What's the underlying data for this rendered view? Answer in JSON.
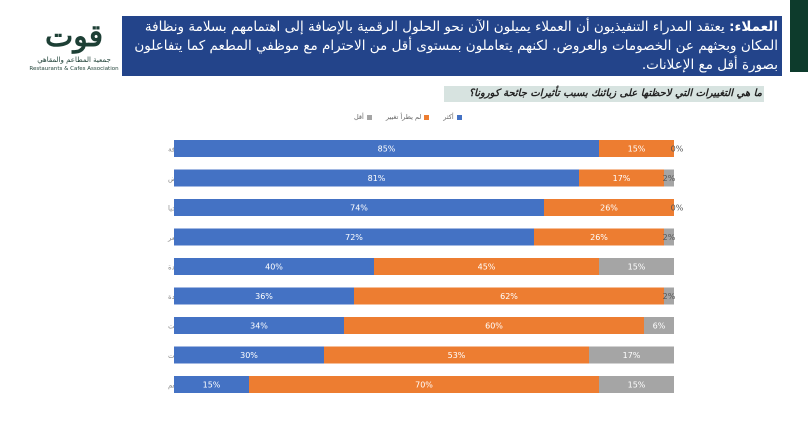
{
  "header": {
    "label": "العملاء:",
    "text": " يعتقد المدراء التنفيذيون أن العملاء يميلون الآن نحو الحلول الرقمية بالإضافة إلى اهتمامهم بسلامة ونظافة المكان وبحثهم عن الخصومات والعروض. لكنهم يتعاملون بمستوى أقل من الاحترام مع موظفي المطعم كما يتفاعلون بصورة أقل مع الإعلانات."
  },
  "logo": {
    "name": "قوت",
    "subtitle_ar": "جمعية المطاعم والمقاهي",
    "subtitle_en": "Restaurants & Cafes Association"
  },
  "colors": {
    "header_bg": "#23448a",
    "more": "#4472c4",
    "no_change": "#ed7d31",
    "less": "#a5a5a5",
    "right_strip": "#0d3b2c",
    "question_bg": "#d7e3e0"
  },
  "chart_data": {
    "type": "bar",
    "stacked": true,
    "orientation": "horizontal",
    "title": "ما هي التغييرات التي لاحظتها على زبائنك بسبب تأثيرات جائحة كورونا؟",
    "legend_position": "top",
    "grid": false,
    "xlim": [
      0,
      100
    ],
    "categories": [
      "الاهتمام بالسلامة والنظافة",
      "البحث عن الخصومات والعروض",
      "المهارة في استخدام التكنولوجيا",
      "الاهتمام بالسعر",
      "الاهتمام بالجودة",
      "تجريب المنتجات الجديدة",
      "الاهتمام باختيار الماركات",
      "التفاعل مع الإعلانات",
      "التعامل باحترام مع موظفي المطعم"
    ],
    "series": [
      {
        "name": "أكثر",
        "color": "#4472c4",
        "values": [
          85,
          81,
          74,
          72,
          40,
          36,
          34,
          30,
          15
        ]
      },
      {
        "name": "لم يطرأ تغيير",
        "color": "#ed7d31",
        "values": [
          15,
          17,
          26,
          26,
          45,
          62,
          60,
          53,
          70
        ]
      },
      {
        "name": "أقل",
        "color": "#a5a5a5",
        "values": [
          0,
          2,
          0,
          2,
          15,
          2,
          6,
          17,
          15
        ]
      }
    ]
  }
}
